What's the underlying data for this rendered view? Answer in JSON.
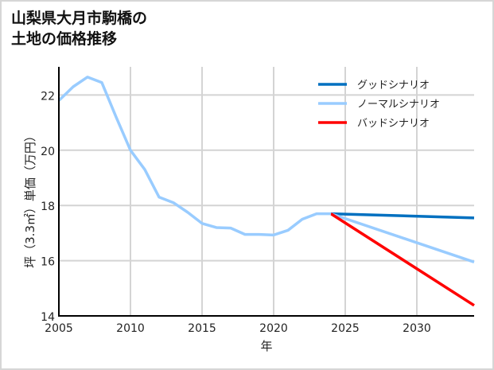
{
  "title_line1": "山梨県大月市駒橋の",
  "title_line2": "土地の価格推移",
  "chart_data": {
    "type": "line",
    "title": "山梨県大月市駒橋の土地の価格推移",
    "xlabel": "年",
    "ylabel": "坪（3.3㎡）単価（万円）",
    "xlim": [
      2005,
      2034
    ],
    "ylim": [
      14,
      23
    ],
    "xticks": [
      2005,
      2010,
      2015,
      2020,
      2025,
      2030
    ],
    "yticks": [
      14,
      16,
      18,
      20,
      22
    ],
    "grid": true,
    "legend_position": "upper right",
    "series": [
      {
        "name": "ノーマルシナリオ (historical)",
        "color": "#99ccff",
        "x": [
          2005,
          2006,
          2007,
          2008,
          2009,
          2010,
          2011,
          2012,
          2013,
          2014,
          2015,
          2016,
          2017,
          2018,
          2019,
          2020,
          2021,
          2022,
          2023,
          2024
        ],
        "values": [
          21.8,
          22.3,
          22.65,
          22.45,
          21.2,
          20.0,
          19.3,
          18.3,
          18.1,
          17.75,
          17.35,
          17.2,
          17.18,
          16.95,
          16.95,
          16.93,
          17.1,
          17.5,
          17.7,
          17.7
        ]
      },
      {
        "name": "グッドシナリオ",
        "color": "#0070c0",
        "x": [
          2024,
          2034
        ],
        "values": [
          17.7,
          17.55
        ]
      },
      {
        "name": "ノーマルシナリオ",
        "color": "#99ccff",
        "x": [
          2024,
          2034
        ],
        "values": [
          17.7,
          15.95
        ]
      },
      {
        "name": "バッドシナリオ",
        "color": "#ff0000",
        "x": [
          2024,
          2034
        ],
        "values": [
          17.7,
          14.38
        ]
      }
    ],
    "legend": [
      {
        "label": "グッドシナリオ",
        "color": "#0070c0"
      },
      {
        "label": "ノーマルシナリオ",
        "color": "#99ccff"
      },
      {
        "label": "バッドシナリオ",
        "color": "#ff0000"
      }
    ]
  }
}
